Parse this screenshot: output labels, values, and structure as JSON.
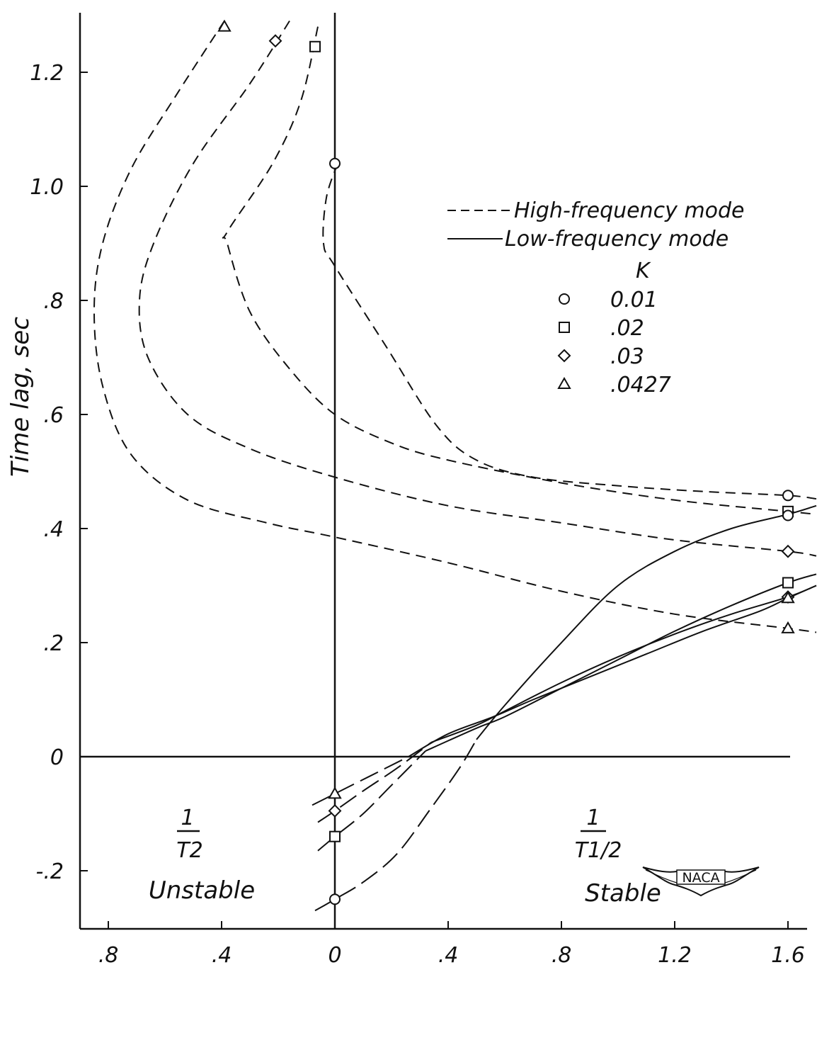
{
  "chart_data": {
    "type": "line",
    "title": "",
    "ylabel": "Time lag, sec",
    "xlabel_left": {
      "numerator": "1",
      "denominator": "T2",
      "caption": "Unstable"
    },
    "xlabel_right": {
      "numerator": "1",
      "denominator": "T1/2",
      "caption": "Stable"
    },
    "x_ticks": [
      ".8",
      ".4",
      "0",
      ".4",
      ".8",
      "1.2",
      "1.6"
    ],
    "x_tick_values": [
      -0.8,
      -0.4,
      0,
      0.4,
      0.8,
      1.2,
      1.6
    ],
    "y_ticks": [
      "1.2",
      "1.0",
      ".8",
      ".6",
      ".4",
      ".2",
      "0",
      "-.2"
    ],
    "y_tick_values": [
      1.2,
      1.0,
      0.8,
      0.6,
      0.4,
      0.2,
      0,
      -0.2
    ],
    "xlim": [
      -0.9,
      1.7
    ],
    "ylim": [
      -0.3,
      1.3
    ],
    "grid": false,
    "legend": {
      "placement": "top-right",
      "lines": [
        {
          "style": "dashed",
          "label": "High-frequency mode"
        },
        {
          "style": "solid",
          "label": "Low-frequency mode"
        }
      ],
      "k_header": "K",
      "k_entries": [
        {
          "marker": "circle",
          "label": "0.01"
        },
        {
          "marker": "square",
          "label": ".02"
        },
        {
          "marker": "diamond",
          "label": ".03"
        },
        {
          "marker": "triangle",
          "label": ".0427"
        }
      ]
    },
    "series": [
      {
        "mode": "high-frequency",
        "marker": "circle",
        "k": "0.01",
        "points": [
          [
            0.01,
            1.04
          ],
          [
            -0.03,
            0.98
          ],
          [
            -0.04,
            0.9
          ],
          [
            0.0,
            0.86
          ],
          [
            0.18,
            0.72
          ],
          [
            0.36,
            0.58
          ],
          [
            0.5,
            0.52
          ],
          [
            0.7,
            0.49
          ],
          [
            1.0,
            0.475
          ],
          [
            1.3,
            0.465
          ],
          [
            1.6,
            0.458
          ],
          [
            1.7,
            0.452
          ]
        ],
        "markers": [
          [
            0.0,
            1.04
          ],
          [
            1.6,
            0.458
          ]
        ]
      },
      {
        "mode": "high-frequency",
        "marker": "square",
        "k": ".02",
        "points": [
          [
            -0.06,
            1.28
          ],
          [
            -0.12,
            1.15
          ],
          [
            -0.22,
            1.04
          ],
          [
            -0.38,
            0.92
          ],
          [
            -0.38,
            0.9
          ],
          [
            -0.3,
            0.78
          ],
          [
            -0.16,
            0.68
          ],
          [
            0.0,
            0.6
          ],
          [
            0.2,
            0.55
          ],
          [
            0.4,
            0.52
          ],
          [
            0.8,
            0.48
          ],
          [
            1.2,
            0.45
          ],
          [
            1.6,
            0.43
          ],
          [
            1.7,
            0.425
          ]
        ],
        "markers": [
          [
            -0.07,
            1.245
          ],
          [
            1.6,
            0.43
          ]
        ]
      },
      {
        "mode": "high-frequency",
        "marker": "diamond",
        "k": ".03",
        "points": [
          [
            -0.16,
            1.29
          ],
          [
            -0.3,
            1.18
          ],
          [
            -0.5,
            1.04
          ],
          [
            -0.64,
            0.9
          ],
          [
            -0.69,
            0.8
          ],
          [
            -0.66,
            0.7
          ],
          [
            -0.52,
            0.6
          ],
          [
            -0.3,
            0.54
          ],
          [
            0.0,
            0.49
          ],
          [
            0.4,
            0.44
          ],
          [
            0.8,
            0.41
          ],
          [
            1.2,
            0.38
          ],
          [
            1.6,
            0.36
          ],
          [
            1.7,
            0.352
          ]
        ],
        "markers": [
          [
            -0.21,
            1.255
          ],
          [
            1.6,
            0.36
          ]
        ]
      },
      {
        "mode": "high-frequency",
        "marker": "triangle",
        "k": ".0427",
        "points": [
          [
            -0.39,
            1.29
          ],
          [
            -0.56,
            1.16
          ],
          [
            -0.72,
            1.03
          ],
          [
            -0.82,
            0.9
          ],
          [
            -0.85,
            0.78
          ],
          [
            -0.82,
            0.65
          ],
          [
            -0.72,
            0.53
          ],
          [
            -0.52,
            0.45
          ],
          [
            -0.24,
            0.41
          ],
          [
            0.0,
            0.385
          ],
          [
            0.4,
            0.34
          ],
          [
            0.8,
            0.29
          ],
          [
            1.2,
            0.25
          ],
          [
            1.6,
            0.225
          ],
          [
            1.7,
            0.218
          ]
        ],
        "markers": [
          [
            -0.39,
            1.28
          ],
          [
            1.6,
            0.225
          ]
        ]
      },
      {
        "mode": "low-frequency",
        "marker": "circle",
        "k": "0.01",
        "points": [
          [
            -0.07,
            -0.27
          ],
          [
            0.0,
            -0.25
          ],
          [
            0.1,
            -0.22
          ],
          [
            0.22,
            -0.17
          ],
          [
            0.34,
            -0.09
          ],
          [
            0.44,
            -0.02
          ],
          [
            0.5,
            0.03
          ],
          [
            0.6,
            0.09
          ],
          [
            0.8,
            0.2
          ],
          [
            1.0,
            0.3
          ],
          [
            1.2,
            0.36
          ],
          [
            1.4,
            0.4
          ],
          [
            1.6,
            0.425
          ],
          [
            1.7,
            0.44
          ]
        ],
        "markers": [
          [
            0.0,
            -0.25
          ],
          [
            1.6,
            0.423
          ]
        ]
      },
      {
        "mode": "low-frequency",
        "marker": "square",
        "k": ".02",
        "points": [
          [
            -0.06,
            -0.165
          ],
          [
            0.0,
            -0.14
          ],
          [
            0.1,
            -0.1
          ],
          [
            0.2,
            -0.05
          ],
          [
            0.32,
            0.01
          ],
          [
            0.5,
            0.05
          ],
          [
            0.6,
            0.07
          ],
          [
            0.8,
            0.12
          ],
          [
            1.0,
            0.17
          ],
          [
            1.2,
            0.22
          ],
          [
            1.4,
            0.265
          ],
          [
            1.6,
            0.305
          ],
          [
            1.7,
            0.32
          ]
        ],
        "markers": [
          [
            0.0,
            -0.14
          ],
          [
            1.6,
            0.305
          ]
        ]
      },
      {
        "mode": "low-frequency",
        "marker": "diamond",
        "k": ".03",
        "points": [
          [
            -0.06,
            -0.115
          ],
          [
            0.0,
            -0.095
          ],
          [
            0.1,
            -0.06
          ],
          [
            0.22,
            -0.02
          ],
          [
            0.34,
            0.025
          ],
          [
            0.5,
            0.055
          ],
          [
            0.6,
            0.08
          ],
          [
            0.8,
            0.13
          ],
          [
            1.0,
            0.175
          ],
          [
            1.2,
            0.215
          ],
          [
            1.4,
            0.25
          ],
          [
            1.6,
            0.28
          ],
          [
            1.7,
            0.3
          ]
        ],
        "markers": [
          [
            0.0,
            -0.095
          ],
          [
            1.6,
            0.28
          ]
        ]
      },
      {
        "mode": "low-frequency",
        "marker": "triangle",
        "k": ".0427",
        "points": [
          [
            -0.08,
            -0.085
          ],
          [
            0.0,
            -0.065
          ],
          [
            0.12,
            -0.035
          ],
          [
            0.26,
            0.0
          ],
          [
            0.4,
            0.04
          ],
          [
            0.56,
            0.07
          ],
          [
            0.7,
            0.1
          ],
          [
            0.9,
            0.14
          ],
          [
            1.1,
            0.18
          ],
          [
            1.3,
            0.22
          ],
          [
            1.5,
            0.255
          ],
          [
            1.6,
            0.278
          ],
          [
            1.7,
            0.3
          ]
        ],
        "markers": [
          [
            0.0,
            -0.065
          ],
          [
            1.6,
            0.278
          ]
        ]
      }
    ]
  },
  "stamp": {
    "text": "NACA"
  }
}
